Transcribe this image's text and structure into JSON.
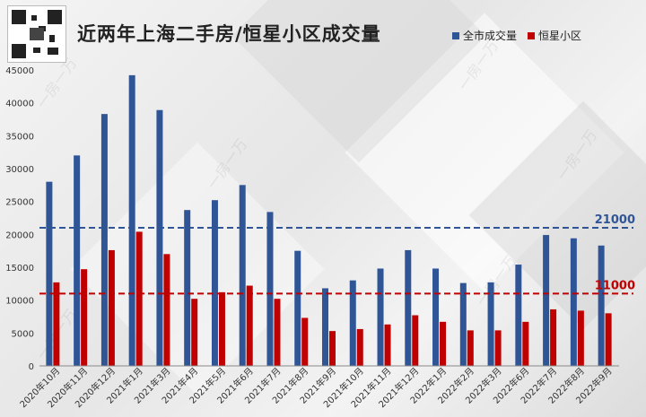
{
  "title": "近两年上海二手房/恒星小区成交量",
  "colors": {
    "series1": "#2f5597",
    "series2": "#c00000",
    "ref1": "#2f5597",
    "ref2": "#c00000"
  },
  "chart_data": {
    "type": "bar",
    "categories": [
      "2020年10月",
      "2020年11月",
      "2020年12月",
      "2021年1月",
      "2021年3月",
      "2021年4月",
      "2021年5月",
      "2021年6月",
      "2021年7月",
      "2021年8月",
      "2021年9月",
      "2021年10月",
      "2021年11月",
      "2021年12月",
      "2022年1月",
      "2022年2月",
      "2022年3月",
      "2022年6月",
      "2022年7月",
      "2022年8月",
      "2022年9月"
    ],
    "series": [
      {
        "name": "全市成交量",
        "values": [
          28000,
          32000,
          38300,
          44200,
          38900,
          23700,
          25200,
          27500,
          23400,
          17500,
          11800,
          13000,
          14800,
          17600,
          14800,
          12600,
          12700,
          15400,
          19900,
          19400,
          18300
        ]
      },
      {
        "name": "恒星小区",
        "values": [
          12700,
          14700,
          17600,
          20400,
          17000,
          10200,
          11200,
          12200,
          10200,
          7300,
          5300,
          5600,
          6300,
          7700,
          6700,
          5400,
          5400,
          6700,
          8600,
          8400,
          8000
        ]
      }
    ],
    "reference_lines": [
      {
        "label": "21000",
        "value": 21000
      },
      {
        "label": "11000",
        "value": 11000
      }
    ],
    "ylim": [
      0,
      45000
    ],
    "yticks": [
      0,
      5000,
      10000,
      15000,
      20000,
      25000,
      30000,
      35000,
      40000,
      45000
    ],
    "legend_position": "top-right",
    "grid": false
  },
  "watermark": "一房一万"
}
